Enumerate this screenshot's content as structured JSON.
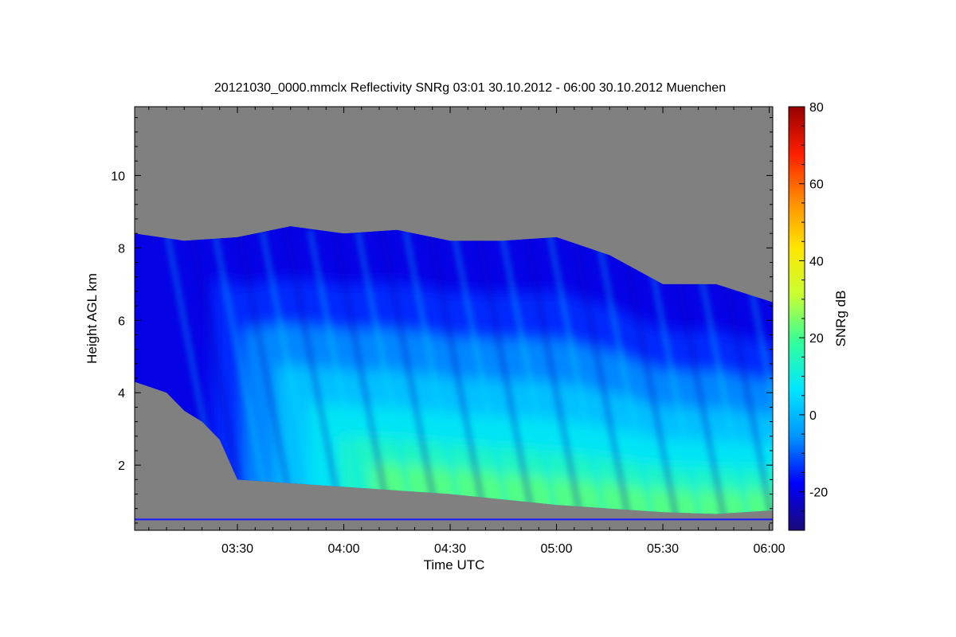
{
  "chart_data": {
    "type": "heatmap",
    "title": "20121030_0000.mmclx Reflectivity SNRg   03:01 30.10.2012 - 06:00 30.10.2012 Muenchen",
    "xlabel": "Time UTC",
    "ylabel": "Height AGL km",
    "colorbar_label": "SNRg dB",
    "x_range": [
      "03:01",
      "06:01"
    ],
    "x_ticks": [
      "03:30",
      "04:00",
      "04:30",
      "05:00",
      "05:30",
      "06:00"
    ],
    "ylim": [
      0.2,
      11.9
    ],
    "y_ticks": [
      2,
      4,
      6,
      8,
      10
    ],
    "colorbar_range": [
      -30,
      80
    ],
    "colorbar_ticks": [
      -20,
      0,
      20,
      40,
      60,
      80
    ],
    "no_data_color": "#808080",
    "colormap": [
      "#1a0a78",
      "#0000ff",
      "#0096ff",
      "#00e6ff",
      "#32ff9a",
      "#c8ff32",
      "#ffe600",
      "#ff8c00",
      "#ff1e00",
      "#960000"
    ],
    "cloud_layer": {
      "top_km": [
        {
          "t": "03:01",
          "h": 8.4
        },
        {
          "t": "03:15",
          "h": 8.2
        },
        {
          "t": "03:30",
          "h": 8.3
        },
        {
          "t": "03:45",
          "h": 8.6
        },
        {
          "t": "04:00",
          "h": 8.4
        },
        {
          "t": "04:15",
          "h": 8.5
        },
        {
          "t": "04:30",
          "h": 8.2
        },
        {
          "t": "04:45",
          "h": 8.2
        },
        {
          "t": "05:00",
          "h": 8.3
        },
        {
          "t": "05:15",
          "h": 7.8
        },
        {
          "t": "05:30",
          "h": 7.0
        },
        {
          "t": "05:45",
          "h": 7.0
        },
        {
          "t": "06:01",
          "h": 6.5
        }
      ],
      "base_km": [
        {
          "t": "03:01",
          "h": 4.3
        },
        {
          "t": "03:10",
          "h": 4.0
        },
        {
          "t": "03:15",
          "h": 3.5
        },
        {
          "t": "03:20",
          "h": 3.2
        },
        {
          "t": "03:25",
          "h": 2.7
        },
        {
          "t": "03:30",
          "h": 1.6
        },
        {
          "t": "03:45",
          "h": 1.5
        },
        {
          "t": "04:00",
          "h": 1.4
        },
        {
          "t": "04:30",
          "h": 1.2
        },
        {
          "t": "05:00",
          "h": 0.9
        },
        {
          "t": "05:30",
          "h": 0.7
        },
        {
          "t": "05:45",
          "h": 0.65
        },
        {
          "t": "06:01",
          "h": 0.75
        }
      ]
    },
    "peak_snr_dB": 22,
    "ground_clutter_height_km": 0.5
  }
}
